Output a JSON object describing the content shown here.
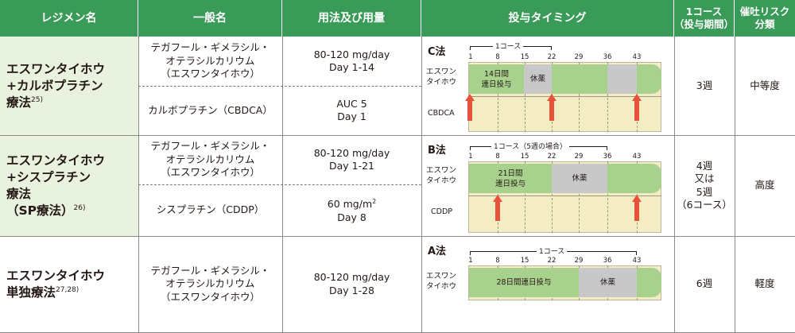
{
  "headers": {
    "regimen": "レジメン名",
    "drug": "一般名",
    "dosage": "用法及び用量",
    "timing": "投与タイミング",
    "course_line1": "1コース",
    "course_line2": "（投与期間）",
    "risk_line1": "催吐リスク",
    "risk_line2": "分類"
  },
  "rows": [
    {
      "regimen_lines": [
        "エスワンタイホウ",
        "+カルボプラチン",
        "療法"
      ],
      "regimen_ref": "25)",
      "drugs": [
        {
          "name_lines": [
            "テガフール・ギメラシル・",
            "オテラシルカリウム",
            "（エスワンタイホウ）"
          ],
          "dose_lines": [
            "80-120 mg/day",
            "Day 1-14"
          ]
        },
        {
          "name_lines": [
            "カルボプラチン（CBDCA）"
          ],
          "dose_lines": [
            "AUC 5",
            "Day 1"
          ]
        }
      ],
      "timing": {
        "method": "C法",
        "course_label": "1コース",
        "ticks": [
          "1",
          "8",
          "15",
          "22",
          "29",
          "36",
          "43"
        ],
        "drug1_lines": [
          "エスワン",
          "タイホウ"
        ],
        "drug2": "CBDCA",
        "dosing_lines": [
          "14日間",
          "連日投与"
        ],
        "rest": "休薬"
      },
      "course": [
        "3週"
      ],
      "risk": "中等度"
    },
    {
      "regimen_lines": [
        "エスワンタイホウ",
        "+シスプラチン",
        "療法",
        "（SP療法）"
      ],
      "regimen_ref": "26)",
      "drugs": [
        {
          "name_lines": [
            "テガフール・ギメラシル・",
            "オテラシルカリウム",
            "（エスワンタイホウ）"
          ],
          "dose_lines": [
            "80-120 mg/day",
            "Day 1-21"
          ]
        },
        {
          "name_lines": [
            "シスプラチン（CDDP）"
          ],
          "dose_lines": [
            "60 mg/m",
            "Day 8"
          ],
          "dose_sup": "2"
        }
      ],
      "timing": {
        "method": "B法",
        "course_label": "1コース（5週の場合）",
        "ticks": [
          "1",
          "8",
          "15",
          "22",
          "29",
          "36",
          "43"
        ],
        "drug1_lines": [
          "エスワン",
          "タイホウ"
        ],
        "drug2": "CDDP",
        "dosing_lines": [
          "21日間",
          "連日投与"
        ],
        "rest": "休薬"
      },
      "course": [
        "4週",
        "又は",
        "5週",
        "（6コース）"
      ],
      "risk": "高度"
    },
    {
      "regimen_lines": [
        "エスワンタイホウ",
        "単独療法"
      ],
      "regimen_ref": "27,28)",
      "drugs": [
        {
          "name_lines": [
            "テガフール・ギメラシル・",
            "オテラシルカリウム",
            "（エスワンタイホウ）"
          ],
          "dose_lines": [
            "80-120 mg/day",
            "Day 1-28"
          ]
        }
      ],
      "timing": {
        "method": "A法",
        "course_label": "1コース",
        "ticks": [
          "1",
          "8",
          "15",
          "22",
          "29",
          "36",
          "43"
        ],
        "drug1_lines": [
          "エスワン",
          "タイホウ"
        ],
        "dosing_lines": [
          "28日間連日投与"
        ],
        "rest": "休薬"
      },
      "course": [
        "6週"
      ],
      "risk": "軽度"
    }
  ],
  "colors": {
    "header": "#3a9a58",
    "row_tint": "#e9f2df",
    "dosing": "#a9d18e",
    "rest": "#c8c8c8",
    "band": "#f4edc3",
    "arrow": "#e8523b"
  }
}
